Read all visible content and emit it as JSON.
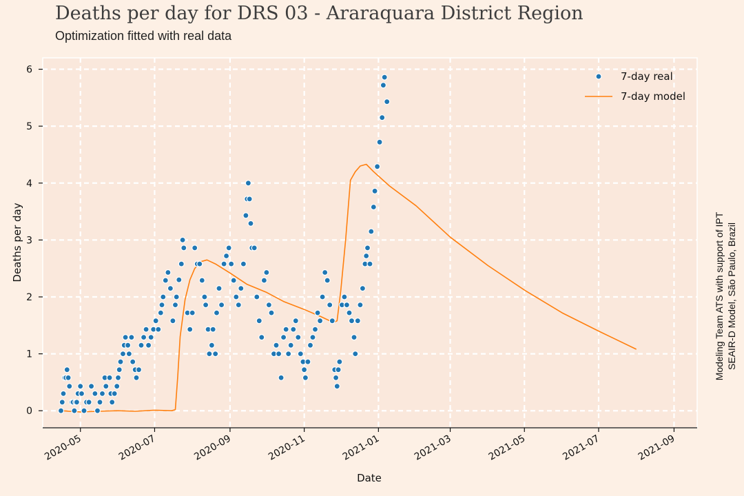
{
  "header": {
    "title": "Deaths per day for DRS 03 - Araraquara District Region",
    "subtitle": "Optimization fitted with real data"
  },
  "credit": {
    "line1": "Modeling Team ATS with support of IPT",
    "line2": "SEAIR-D Model, São Paulo, Brazil"
  },
  "colors": {
    "background": "#fdf0e5",
    "plot_background": "#fae8dc",
    "grid": "#ffffff",
    "real": "#1f77b4",
    "model": "#ff7f0e"
  },
  "chart_data": {
    "type": "scatter",
    "title": "Deaths per day for DRS 03 - Araraquara District Region",
    "subtitle": "Optimization fitted with real data",
    "xlabel": "Date",
    "ylabel": "Deaths per day",
    "xlim": [
      "2020-03-31",
      "2021-09-20"
    ],
    "ylim": [
      -0.3,
      6.2
    ],
    "x_ticks": [
      "2020-05",
      "2020-07",
      "2020-09",
      "2020-11",
      "2021-01",
      "2021-03",
      "2021-05",
      "2021-07",
      "2021-09"
    ],
    "x_tick_dates": [
      "2020-05-01",
      "2020-07-01",
      "2020-09-01",
      "2020-11-01",
      "2021-01-01",
      "2021-03-01",
      "2021-05-01",
      "2021-07-01",
      "2021-09-01"
    ],
    "y_ticks": [
      0,
      1,
      2,
      3,
      4,
      5,
      6
    ],
    "grid": true,
    "legend_position": "top-right",
    "series": [
      {
        "name": "7-day real",
        "type": "scatter",
        "points": [
          [
            "2020-04-15",
            0.0
          ],
          [
            "2020-04-16",
            0.15
          ],
          [
            "2020-04-17",
            0.3
          ],
          [
            "2020-04-18",
            0.58
          ],
          [
            "2020-04-19",
            0.58
          ],
          [
            "2020-04-20",
            0.72
          ],
          [
            "2020-04-21",
            0.58
          ],
          [
            "2020-04-22",
            0.43
          ],
          [
            "2020-04-24",
            0.15
          ],
          [
            "2020-04-25",
            0.15
          ],
          [
            "2020-04-26",
            0.0
          ],
          [
            "2020-04-27",
            0.15
          ],
          [
            "2020-04-28",
            0.15
          ],
          [
            "2020-04-29",
            0.3
          ],
          [
            "2020-05-01",
            0.43
          ],
          [
            "2020-05-02",
            0.3
          ],
          [
            "2020-05-04",
            0.0
          ],
          [
            "2020-05-06",
            0.15
          ],
          [
            "2020-05-08",
            0.15
          ],
          [
            "2020-05-10",
            0.43
          ],
          [
            "2020-05-13",
            0.3
          ],
          [
            "2020-05-15",
            0.0
          ],
          [
            "2020-05-17",
            0.15
          ],
          [
            "2020-05-19",
            0.3
          ],
          [
            "2020-05-21",
            0.58
          ],
          [
            "2020-05-22",
            0.43
          ],
          [
            "2020-05-25",
            0.58
          ],
          [
            "2020-05-26",
            0.3
          ],
          [
            "2020-05-27",
            0.15
          ],
          [
            "2020-05-29",
            0.3
          ],
          [
            "2020-05-31",
            0.43
          ],
          [
            "2020-06-01",
            0.58
          ],
          [
            "2020-06-02",
            0.72
          ],
          [
            "2020-06-03",
            0.86
          ],
          [
            "2020-06-05",
            1.0
          ],
          [
            "2020-06-06",
            1.15
          ],
          [
            "2020-06-07",
            1.29
          ],
          [
            "2020-06-09",
            1.15
          ],
          [
            "2020-06-10",
            1.0
          ],
          [
            "2020-06-12",
            1.29
          ],
          [
            "2020-06-13",
            0.86
          ],
          [
            "2020-06-15",
            0.72
          ],
          [
            "2020-06-16",
            0.58
          ],
          [
            "2020-06-18",
            0.72
          ],
          [
            "2020-06-20",
            1.15
          ],
          [
            "2020-06-22",
            1.29
          ],
          [
            "2020-06-24",
            1.43
          ],
          [
            "2020-06-26",
            1.15
          ],
          [
            "2020-06-28",
            1.29
          ],
          [
            "2020-06-30",
            1.43
          ],
          [
            "2020-07-02",
            1.58
          ],
          [
            "2020-07-04",
            1.43
          ],
          [
            "2020-07-06",
            1.72
          ],
          [
            "2020-07-07",
            1.86
          ],
          [
            "2020-07-08",
            2.0
          ],
          [
            "2020-07-10",
            2.29
          ],
          [
            "2020-07-12",
            2.43
          ],
          [
            "2020-07-14",
            2.15
          ],
          [
            "2020-07-16",
            1.58
          ],
          [
            "2020-07-18",
            1.86
          ],
          [
            "2020-07-19",
            2.0
          ],
          [
            "2020-07-21",
            2.3
          ],
          [
            "2020-07-23",
            2.58
          ],
          [
            "2020-07-24",
            3.0
          ],
          [
            "2020-07-25",
            2.86
          ],
          [
            "2020-07-28",
            1.72
          ],
          [
            "2020-07-30",
            1.43
          ],
          [
            "2020-08-01",
            1.72
          ],
          [
            "2020-08-03",
            2.86
          ],
          [
            "2020-08-05",
            2.58
          ],
          [
            "2020-08-07",
            2.58
          ],
          [
            "2020-08-09",
            2.29
          ],
          [
            "2020-08-11",
            2.0
          ],
          [
            "2020-08-12",
            1.86
          ],
          [
            "2020-08-14",
            1.43
          ],
          [
            "2020-08-15",
            1.0
          ],
          [
            "2020-08-17",
            1.15
          ],
          [
            "2020-08-18",
            1.43
          ],
          [
            "2020-08-20",
            1.0
          ],
          [
            "2020-08-21",
            1.72
          ],
          [
            "2020-08-23",
            2.15
          ],
          [
            "2020-08-25",
            1.86
          ],
          [
            "2020-08-27",
            2.58
          ],
          [
            "2020-08-29",
            2.72
          ],
          [
            "2020-08-31",
            2.86
          ],
          [
            "2020-09-02",
            2.58
          ],
          [
            "2020-09-04",
            2.29
          ],
          [
            "2020-09-06",
            2.0
          ],
          [
            "2020-09-08",
            1.86
          ],
          [
            "2020-09-10",
            2.15
          ],
          [
            "2020-09-12",
            2.58
          ],
          [
            "2020-09-14",
            3.43
          ],
          [
            "2020-09-15",
            3.72
          ],
          [
            "2020-09-16",
            4.0
          ],
          [
            "2020-09-17",
            3.72
          ],
          [
            "2020-09-18",
            3.29
          ],
          [
            "2020-09-19",
            2.86
          ],
          [
            "2020-09-21",
            2.86
          ],
          [
            "2020-09-23",
            2.0
          ],
          [
            "2020-09-25",
            1.58
          ],
          [
            "2020-09-27",
            1.29
          ],
          [
            "2020-09-29",
            2.29
          ],
          [
            "2020-10-01",
            2.43
          ],
          [
            "2020-10-03",
            1.86
          ],
          [
            "2020-10-05",
            1.72
          ],
          [
            "2020-10-07",
            1.0
          ],
          [
            "2020-10-09",
            1.15
          ],
          [
            "2020-10-11",
            1.0
          ],
          [
            "2020-10-13",
            0.58
          ],
          [
            "2020-10-15",
            1.29
          ],
          [
            "2020-10-17",
            1.43
          ],
          [
            "2020-10-19",
            1.0
          ],
          [
            "2020-10-21",
            1.15
          ],
          [
            "2020-10-23",
            1.43
          ],
          [
            "2020-10-25",
            1.58
          ],
          [
            "2020-10-27",
            1.29
          ],
          [
            "2020-10-29",
            1.0
          ],
          [
            "2020-10-31",
            0.86
          ],
          [
            "2020-11-01",
            0.72
          ],
          [
            "2020-11-02",
            0.58
          ],
          [
            "2020-11-04",
            0.86
          ],
          [
            "2020-11-06",
            1.15
          ],
          [
            "2020-11-08",
            1.29
          ],
          [
            "2020-11-10",
            1.43
          ],
          [
            "2020-11-12",
            1.72
          ],
          [
            "2020-11-14",
            1.58
          ],
          [
            "2020-11-16",
            2.0
          ],
          [
            "2020-11-18",
            2.43
          ],
          [
            "2020-11-20",
            2.29
          ],
          [
            "2020-11-22",
            1.86
          ],
          [
            "2020-11-24",
            1.58
          ],
          [
            "2020-11-26",
            0.72
          ],
          [
            "2020-11-27",
            0.58
          ],
          [
            "2020-11-28",
            0.43
          ],
          [
            "2020-11-29",
            0.72
          ],
          [
            "2020-11-30",
            0.86
          ],
          [
            "2020-12-02",
            1.86
          ],
          [
            "2020-12-04",
            2.0
          ],
          [
            "2020-12-06",
            1.86
          ],
          [
            "2020-12-08",
            1.72
          ],
          [
            "2020-12-10",
            1.58
          ],
          [
            "2020-12-12",
            1.29
          ],
          [
            "2020-12-13",
            1.0
          ],
          [
            "2020-12-15",
            1.58
          ],
          [
            "2020-12-17",
            1.86
          ],
          [
            "2020-12-19",
            2.15
          ],
          [
            "2020-12-21",
            2.58
          ],
          [
            "2020-12-22",
            2.72
          ],
          [
            "2020-12-23",
            2.86
          ],
          [
            "2020-12-25",
            2.58
          ],
          [
            "2020-12-26",
            3.15
          ],
          [
            "2020-12-28",
            3.58
          ],
          [
            "2020-12-29",
            3.86
          ],
          [
            "2020-12-31",
            4.29
          ],
          [
            "2021-01-02",
            4.72
          ],
          [
            "2021-01-04",
            5.15
          ],
          [
            "2021-01-05",
            5.72
          ],
          [
            "2021-01-06",
            5.86
          ],
          [
            "2021-01-08",
            5.43
          ]
        ]
      },
      {
        "name": "7-day model",
        "type": "line",
        "points": [
          [
            "2020-04-15",
            0.0
          ],
          [
            "2020-05-01",
            -0.02
          ],
          [
            "2020-05-15",
            -0.01
          ],
          [
            "2020-06-01",
            0.0
          ],
          [
            "2020-06-15",
            -0.01
          ],
          [
            "2020-07-01",
            0.01
          ],
          [
            "2020-07-15",
            0.0
          ],
          [
            "2020-07-18",
            0.02
          ],
          [
            "2020-07-20",
            0.6
          ],
          [
            "2020-07-22",
            1.3
          ],
          [
            "2020-07-26",
            1.95
          ],
          [
            "2020-07-30",
            2.3
          ],
          [
            "2020-08-03",
            2.5
          ],
          [
            "2020-08-08",
            2.62
          ],
          [
            "2020-08-13",
            2.65
          ],
          [
            "2020-08-20",
            2.58
          ],
          [
            "2020-09-01",
            2.42
          ],
          [
            "2020-09-15",
            2.22
          ],
          [
            "2020-10-01",
            2.08
          ],
          [
            "2020-10-15",
            1.92
          ],
          [
            "2020-11-01",
            1.78
          ],
          [
            "2020-11-15",
            1.65
          ],
          [
            "2020-11-25",
            1.55
          ],
          [
            "2020-11-28",
            1.58
          ],
          [
            "2020-12-01",
            2.1
          ],
          [
            "2020-12-05",
            3.0
          ],
          [
            "2020-12-09",
            4.05
          ],
          [
            "2020-12-13",
            4.2
          ],
          [
            "2020-12-17",
            4.3
          ],
          [
            "2020-12-22",
            4.33
          ],
          [
            "2020-12-28",
            4.2
          ],
          [
            "2021-01-10",
            3.95
          ],
          [
            "2021-02-01",
            3.6
          ],
          [
            "2021-03-01",
            3.05
          ],
          [
            "2021-04-01",
            2.55
          ],
          [
            "2021-05-01",
            2.12
          ],
          [
            "2021-06-01",
            1.72
          ],
          [
            "2021-07-01",
            1.4
          ],
          [
            "2021-08-01",
            1.08
          ]
        ]
      }
    ]
  }
}
